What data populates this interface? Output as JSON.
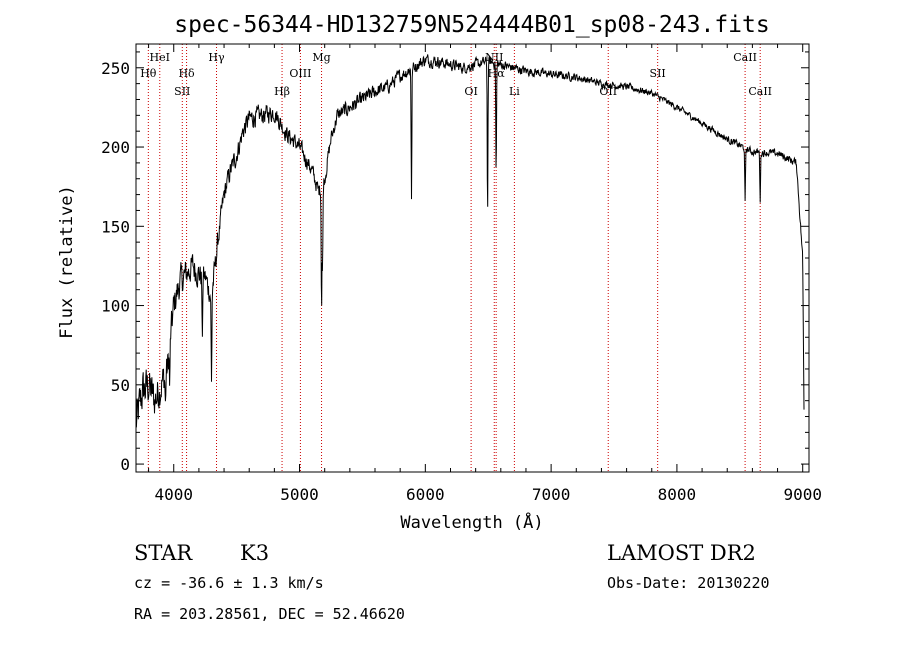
{
  "chart_data": {
    "type": "line",
    "title": "spec-56344-HD132759N524444B01_sp08-243.fits",
    "xlabel": "Wavelength (Å)",
    "ylabel": "Flux (relative)",
    "xlim": [
      3700,
      9050
    ],
    "ylim": [
      -5,
      265
    ],
    "xticks": [
      4000,
      5000,
      6000,
      7000,
      8000,
      9000
    ],
    "yticks": [
      0,
      50,
      100,
      150,
      200,
      250
    ],
    "spectral_lines": [
      {
        "name": "Hθ",
        "wavelength": 3798,
        "level": 1
      },
      {
        "name": "HeI",
        "wavelength": 3889,
        "level": 0
      },
      {
        "name": "SII",
        "wavelength": 4068,
        "level": 2
      },
      {
        "name": "Hδ",
        "wavelength": 4102,
        "level": 1
      },
      {
        "name": "Hγ",
        "wavelength": 4340,
        "level": 0
      },
      {
        "name": "Hβ",
        "wavelength": 4861,
        "level": 2
      },
      {
        "name": "OIII",
        "wavelength": 5007,
        "level": 1
      },
      {
        "name": "Mg",
        "wavelength": 5175,
        "level": 0
      },
      {
        "name": "OI",
        "wavelength": 6364,
        "level": 2
      },
      {
        "name": "NII",
        "wavelength": 6548,
        "level": 0
      },
      {
        "name": "Hα",
        "wavelength": 6563,
        "level": 1
      },
      {
        "name": "Li",
        "wavelength": 6708,
        "level": 2
      },
      {
        "name": "OII",
        "wavelength": 7454,
        "level": 2
      },
      {
        "name": "SII",
        "wavelength": 7847,
        "level": 1
      },
      {
        "name": "CaII",
        "wavelength": 8542,
        "level": 0
      },
      {
        "name": "CaII",
        "wavelength": 8662,
        "level": 2
      }
    ],
    "spectrum_anchors": [
      [
        3700,
        25
      ],
      [
        3750,
        45
      ],
      [
        3800,
        50
      ],
      [
        3850,
        40
      ],
      [
        3900,
        50
      ],
      [
        3950,
        60
      ],
      [
        4000,
        100
      ],
      [
        4050,
        115
      ],
      [
        4100,
        120
      ],
      [
        4150,
        125
      ],
      [
        4200,
        120
      ],
      [
        4250,
        118
      ],
      [
        4300,
        105
      ],
      [
        4350,
        140
      ],
      [
        4400,
        170
      ],
      [
        4450,
        185
      ],
      [
        4500,
        195
      ],
      [
        4550,
        210
      ],
      [
        4600,
        218
      ],
      [
        4700,
        220
      ],
      [
        4800,
        222
      ],
      [
        4900,
        208
      ],
      [
        5000,
        200
      ],
      [
        5100,
        185
      ],
      [
        5150,
        172
      ],
      [
        5200,
        180
      ],
      [
        5250,
        205
      ],
      [
        5300,
        220
      ],
      [
        5400,
        225
      ],
      [
        5500,
        230
      ],
      [
        5600,
        235
      ],
      [
        5700,
        238
      ],
      [
        5800,
        245
      ],
      [
        5900,
        250
      ],
      [
        6000,
        255
      ],
      [
        6100,
        254
      ],
      [
        6200,
        252
      ],
      [
        6300,
        250
      ],
      [
        6400,
        252
      ],
      [
        6500,
        254
      ],
      [
        6600,
        252
      ],
      [
        6700,
        250
      ],
      [
        6800,
        248
      ],
      [
        7000,
        246
      ],
      [
        7200,
        244
      ],
      [
        7400,
        240
      ],
      [
        7600,
        238
      ],
      [
        7800,
        234
      ],
      [
        8000,
        225
      ],
      [
        8200,
        215
      ],
      [
        8400,
        205
      ],
      [
        8600,
        197
      ],
      [
        8800,
        196
      ],
      [
        8950,
        190
      ],
      [
        9000,
        130
      ],
      [
        9010,
        35
      ]
    ],
    "absorption_features": [
      [
        3934,
        20
      ],
      [
        3968,
        25
      ],
      [
        4227,
        40
      ],
      [
        4300,
        55
      ],
      [
        5175,
        75
      ],
      [
        5183,
        55
      ],
      [
        5890,
        80
      ],
      [
        6495,
        95
      ],
      [
        6563,
        70
      ],
      [
        8542,
        35
      ],
      [
        8662,
        30
      ]
    ],
    "noise_profile": [
      [
        3700,
        22
      ],
      [
        4000,
        16
      ],
      [
        4400,
        10
      ],
      [
        5000,
        8
      ],
      [
        6000,
        6
      ],
      [
        7000,
        4
      ],
      [
        8000,
        3
      ],
      [
        9000,
        4
      ]
    ]
  },
  "info": {
    "object_class": "STAR",
    "subclass": "K3",
    "survey": "LAMOST DR2",
    "redshift": "cz = -36.6 ± 1.3 km/s",
    "obs_date": "Obs-Date: 20130220",
    "coords": "RA = 203.28561, DEC =  52.46620"
  }
}
